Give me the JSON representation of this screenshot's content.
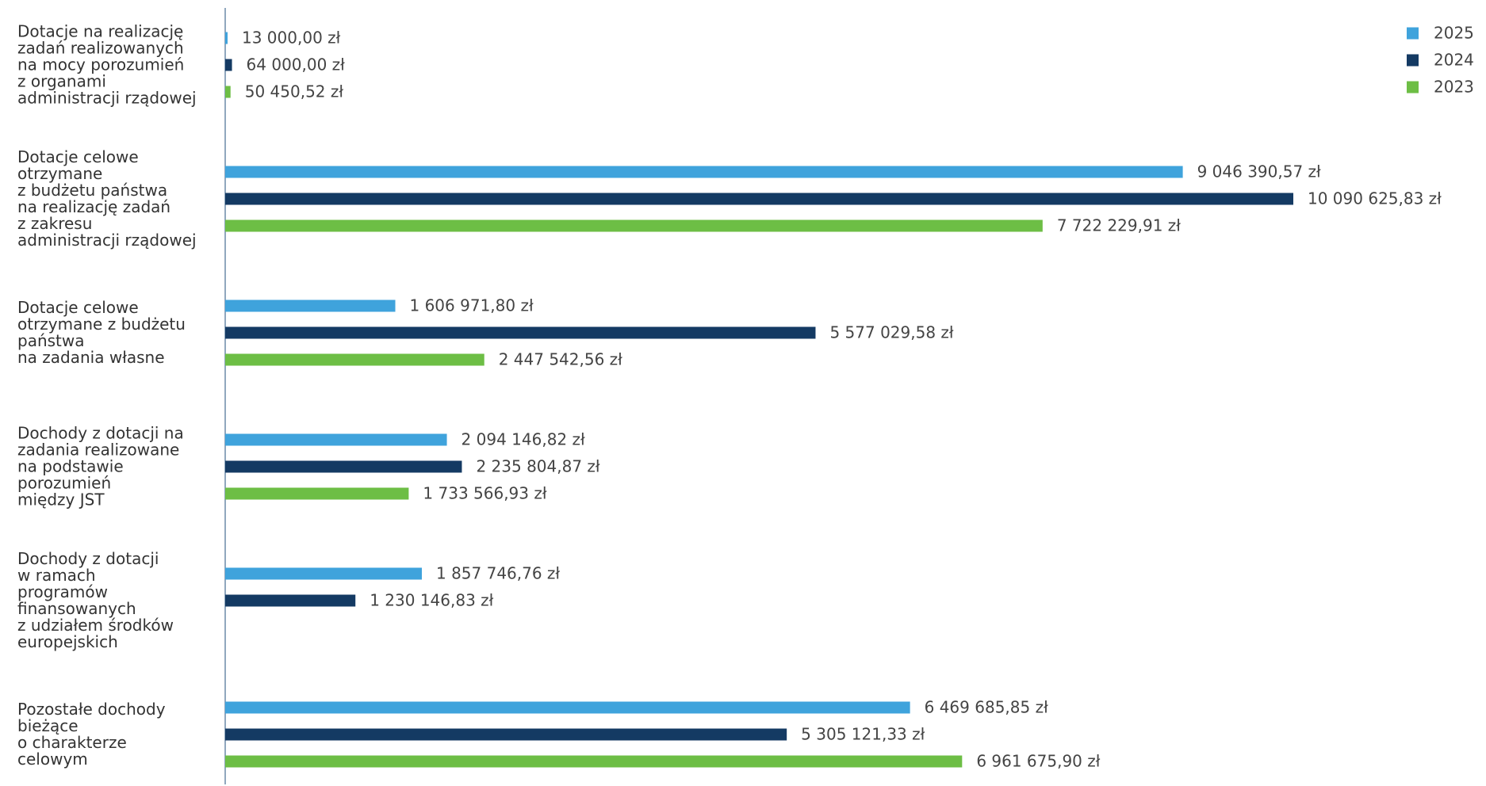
{
  "chart_data": {
    "type": "bar",
    "orientation": "horizontal",
    "categories": [
      "Dotacje na realizację\nzadań realizowanych\nna mocy porozumień\nz organami\nadministracji rządowej",
      "Dotacje celowe\notrzymane\nz budżetu państwa\nna realizację zadań\nz zakresu\nadministracji rządowej",
      "Dotacje celowe\notrzymane z budżetu\npaństwa\nna zadania własne",
      "Dochody z dotacji na\nzadania realizowane\nna podstawie\nporozumień\nmiędzy JST",
      "Dochody z dotacji\nw ramach\nprogramów\nfinansowanych\nz udziałem środków\neuropejskich",
      "Pozostałe dochody\nbieżące\no charakterze\ncelowym"
    ],
    "series": [
      {
        "name": "2025",
        "color": "#3fa3dc",
        "values": [
          13000.0,
          9046390.57,
          1606971.8,
          2094146.82,
          1857746.76,
          6469685.85
        ],
        "value_labels": [
          "13 000,00 zł",
          "9 046 390,57 zł",
          "1 606 971,80 zł",
          "2 094 146,82 zł",
          "1 857 746,76 zł",
          "6 469 685,85 zł"
        ]
      },
      {
        "name": "2024",
        "color": "#143a63",
        "values": [
          64000.0,
          10090625.83,
          5577029.58,
          2235804.87,
          1230146.83,
          5305121.33
        ],
        "value_labels": [
          "64 000,00 zł",
          "10 090 625,83 zł",
          "5 577 029,58 zł",
          "2 235 804,87 zł",
          "1 230 146,83 zł",
          "5 305 121,33 zł"
        ]
      },
      {
        "name": "2023",
        "color": "#6dbe45",
        "values": [
          50450.52,
          7722229.91,
          2447542.56,
          1733566.93,
          null,
          6961675.9
        ],
        "value_labels": [
          "50 450,52 zł",
          "7 722 229,91 zł",
          "2 447 542,56 zł",
          "1 733 566,93 zł",
          null,
          "6 961 675,90 zł"
        ]
      }
    ],
    "legend": "top-right"
  }
}
